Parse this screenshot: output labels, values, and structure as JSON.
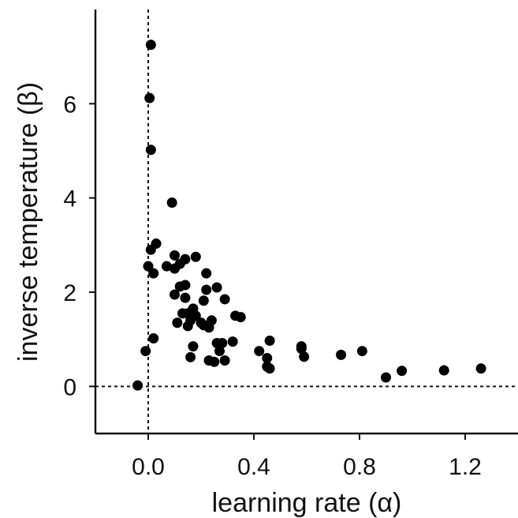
{
  "chart_data": {
    "type": "scatter",
    "title": "",
    "xlabel": "learning rate (α)",
    "ylabel": "inverse temperature (β)",
    "xlim": [
      -0.2,
      1.4
    ],
    "ylim": [
      -1,
      8
    ],
    "x_ticks": [
      0.0,
      0.4,
      0.8,
      1.2
    ],
    "x_tick_labels": [
      "0.0",
      "0.4",
      "0.8",
      "1.2"
    ],
    "y_ticks": [
      0,
      2,
      4,
      6
    ],
    "y_tick_labels": [
      "0",
      "2",
      "4",
      "6"
    ],
    "reference_lines": {
      "x": 0,
      "y": 0,
      "style": "dashed"
    },
    "grid": false,
    "series": [
      {
        "color": "#000000",
        "points": [
          {
            "x": 0.01,
            "y": 7.25
          },
          {
            "x": 0.005,
            "y": 6.12
          },
          {
            "x": 0.01,
            "y": 5.02
          },
          {
            "x": 0.09,
            "y": 3.9
          },
          {
            "x": 0.03,
            "y": 3.03
          },
          {
            "x": 0.01,
            "y": 2.9
          },
          {
            "x": 0.0,
            "y": 2.55
          },
          {
            "x": 0.02,
            "y": 2.4
          },
          {
            "x": 0.07,
            "y": 2.55
          },
          {
            "x": 0.1,
            "y": 2.78
          },
          {
            "x": 0.1,
            "y": 2.5
          },
          {
            "x": 0.12,
            "y": 2.6
          },
          {
            "x": 0.14,
            "y": 2.7
          },
          {
            "x": 0.18,
            "y": 2.75
          },
          {
            "x": 0.22,
            "y": 2.4
          },
          {
            "x": 0.12,
            "y": 2.12
          },
          {
            "x": 0.14,
            "y": 2.15
          },
          {
            "x": 0.1,
            "y": 1.95
          },
          {
            "x": 0.14,
            "y": 1.88
          },
          {
            "x": 0.22,
            "y": 2.05
          },
          {
            "x": 0.26,
            "y": 2.1
          },
          {
            "x": 0.21,
            "y": 1.82
          },
          {
            "x": 0.29,
            "y": 1.85
          },
          {
            "x": 0.17,
            "y": 1.65
          },
          {
            "x": 0.15,
            "y": 1.55
          },
          {
            "x": 0.13,
            "y": 1.55
          },
          {
            "x": 0.16,
            "y": 1.4
          },
          {
            "x": 0.18,
            "y": 1.5
          },
          {
            "x": 0.2,
            "y": 1.35
          },
          {
            "x": 0.11,
            "y": 1.35
          },
          {
            "x": 0.24,
            "y": 1.4
          },
          {
            "x": 0.15,
            "y": 1.28
          },
          {
            "x": 0.23,
            "y": 1.25
          },
          {
            "x": 0.21,
            "y": 1.3
          },
          {
            "x": 0.33,
            "y": 1.5
          },
          {
            "x": 0.35,
            "y": 1.47
          },
          {
            "x": 0.02,
            "y": 1.02
          },
          {
            "x": -0.01,
            "y": 0.75
          },
          {
            "x": 0.17,
            "y": 0.85
          },
          {
            "x": 0.26,
            "y": 0.92
          },
          {
            "x": 0.28,
            "y": 0.92
          },
          {
            "x": 0.32,
            "y": 0.95
          },
          {
            "x": 0.27,
            "y": 0.75
          },
          {
            "x": 0.16,
            "y": 0.62
          },
          {
            "x": 0.23,
            "y": 0.55
          },
          {
            "x": 0.25,
            "y": 0.52
          },
          {
            "x": 0.29,
            "y": 0.55
          },
          {
            "x": 0.42,
            "y": 0.75
          },
          {
            "x": 0.46,
            "y": 0.97
          },
          {
            "x": 0.45,
            "y": 0.6
          },
          {
            "x": 0.45,
            "y": 0.42
          },
          {
            "x": 0.46,
            "y": 0.38
          },
          {
            "x": 0.58,
            "y": 0.85
          },
          {
            "x": 0.58,
            "y": 0.8
          },
          {
            "x": 0.59,
            "y": 0.63
          },
          {
            "x": 0.73,
            "y": 0.67
          },
          {
            "x": 0.81,
            "y": 0.75
          },
          {
            "x": 0.9,
            "y": 0.19
          },
          {
            "x": 0.96,
            "y": 0.33
          },
          {
            "x": 1.12,
            "y": 0.34
          },
          {
            "x": 1.26,
            "y": 0.38
          },
          {
            "x": -0.04,
            "y": 0.02
          }
        ]
      }
    ]
  }
}
